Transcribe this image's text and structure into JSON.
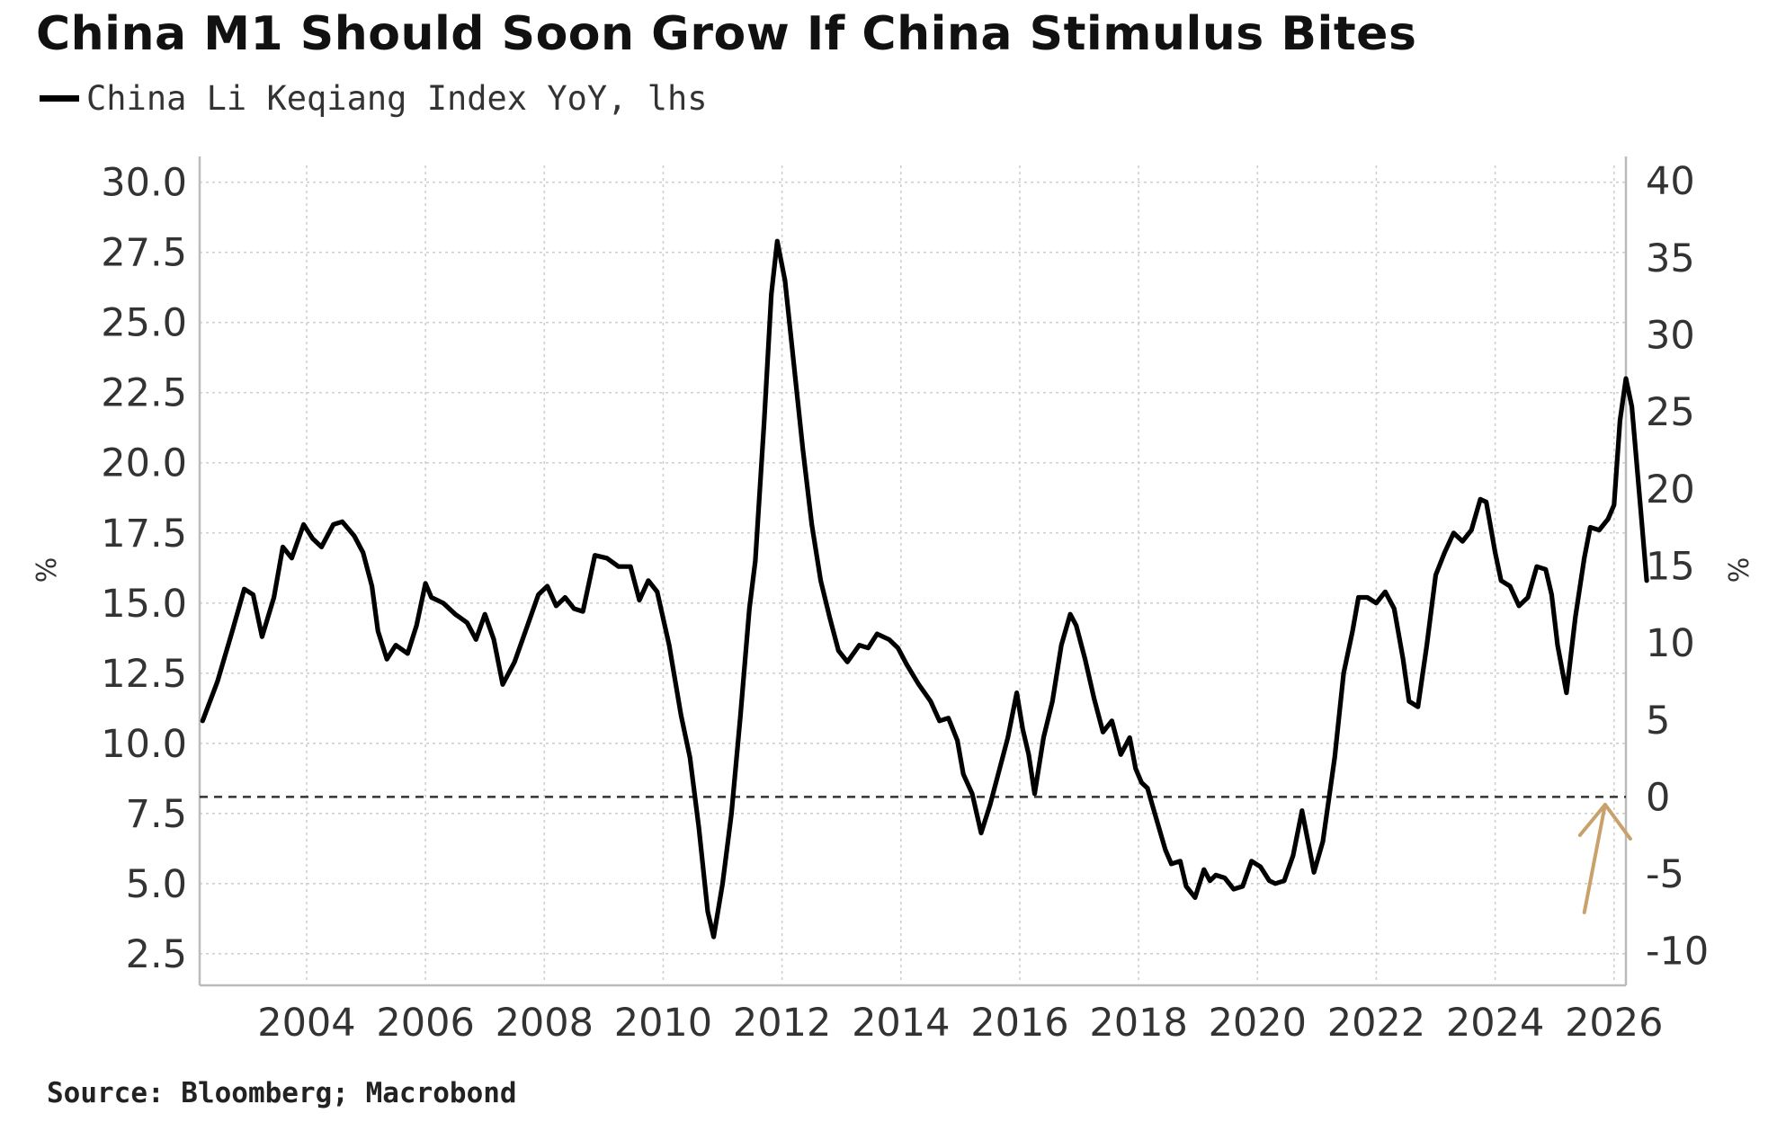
{
  "chart_data": {
    "type": "line",
    "title": "China M1 Should Soon Grow If China Stimulus Bites",
    "source": "Source: Bloomberg; Macrobond",
    "left_unit": "%",
    "right_unit": "%",
    "x_ticks": [
      "2004",
      "2006",
      "2008",
      "2010",
      "2012",
      "2014",
      "2016",
      "2018",
      "2020",
      "2022",
      "2024",
      "2026"
    ],
    "xlim": [
      2002.2,
      2026.2
    ],
    "left_ylim": [
      1.5,
      30.6
    ],
    "left_ticks": [
      "30.0",
      "27.5",
      "25.0",
      "22.5",
      "20.0",
      "17.5",
      "15.0",
      "12.5",
      "10.0",
      "7.5",
      "5.0",
      "2.5"
    ],
    "right_ylim": [
      -12,
      41
    ],
    "right_ticks": [
      "40",
      "35",
      "30",
      "25",
      "20",
      "15",
      "10",
      "5",
      "0",
      "-5",
      "-10"
    ],
    "reference_line": {
      "axis": "right",
      "value": 0,
      "style": "dashed"
    },
    "colors": {
      "li_keqiang": "#000000",
      "real_m1": "#b48c58",
      "arrow": "#c9a26b"
    },
    "series": [
      {
        "name": "China Li Keqiang Index YoY, lhs",
        "axis": "left",
        "points": [
          [
            2002.25,
            10.8
          ],
          [
            2002.5,
            12.2
          ],
          [
            2002.75,
            14.0
          ],
          [
            2002.95,
            15.5
          ],
          [
            2003.1,
            15.3
          ],
          [
            2003.25,
            13.8
          ],
          [
            2003.45,
            15.2
          ],
          [
            2003.6,
            17.0
          ],
          [
            2003.75,
            16.6
          ],
          [
            2003.95,
            17.8
          ],
          [
            2004.1,
            17.3
          ],
          [
            2004.25,
            17.0
          ],
          [
            2004.45,
            17.8
          ],
          [
            2004.6,
            17.9
          ],
          [
            2004.8,
            17.4
          ],
          [
            2004.95,
            16.8
          ],
          [
            2005.1,
            15.6
          ],
          [
            2005.2,
            14.0
          ],
          [
            2005.35,
            13.0
          ],
          [
            2005.5,
            13.5
          ],
          [
            2005.7,
            13.2
          ],
          [
            2005.85,
            14.2
          ],
          [
            2006.0,
            15.7
          ],
          [
            2006.1,
            15.2
          ],
          [
            2006.3,
            15.0
          ],
          [
            2006.5,
            14.6
          ],
          [
            2006.7,
            14.3
          ],
          [
            2006.85,
            13.7
          ],
          [
            2007.0,
            14.6
          ],
          [
            2007.15,
            13.7
          ],
          [
            2007.3,
            12.1
          ],
          [
            2007.5,
            12.9
          ],
          [
            2007.7,
            14.1
          ],
          [
            2007.9,
            15.3
          ],
          [
            2008.05,
            15.6
          ],
          [
            2008.2,
            14.9
          ],
          [
            2008.35,
            15.2
          ],
          [
            2008.5,
            14.8
          ],
          [
            2008.65,
            14.7
          ],
          [
            2008.85,
            16.7
          ],
          [
            2009.05,
            16.6
          ],
          [
            2009.25,
            16.3
          ],
          [
            2009.45,
            16.3
          ],
          [
            2009.6,
            15.1
          ],
          [
            2009.75,
            15.8
          ],
          [
            2009.9,
            15.4
          ],
          [
            2010.1,
            13.5
          ],
          [
            2010.3,
            11.0
          ],
          [
            2010.45,
            9.5
          ],
          [
            2010.6,
            7.0
          ],
          [
            2010.75,
            4.0
          ],
          [
            2010.85,
            3.1
          ],
          [
            2011.0,
            5.0
          ],
          [
            2011.15,
            7.5
          ],
          [
            2011.3,
            11.0
          ],
          [
            2011.45,
            14.8
          ],
          [
            2011.55,
            16.5
          ],
          [
            2011.7,
            21.5
          ],
          [
            2011.82,
            26.0
          ],
          [
            2011.92,
            27.9
          ],
          [
            2012.05,
            26.5
          ],
          [
            2012.2,
            23.5
          ],
          [
            2012.35,
            20.5
          ],
          [
            2012.5,
            17.8
          ],
          [
            2012.65,
            15.8
          ],
          [
            2012.8,
            14.5
          ],
          [
            2012.95,
            13.3
          ],
          [
            2013.1,
            12.9
          ],
          [
            2013.3,
            13.5
          ],
          [
            2013.45,
            13.4
          ],
          [
            2013.6,
            13.9
          ],
          [
            2013.8,
            13.7
          ],
          [
            2013.95,
            13.4
          ],
          [
            2014.1,
            12.8
          ],
          [
            2014.3,
            12.1
          ],
          [
            2014.5,
            11.5
          ],
          [
            2014.65,
            10.8
          ],
          [
            2014.8,
            10.9
          ],
          [
            2014.95,
            10.1
          ],
          [
            2015.05,
            8.9
          ],
          [
            2015.2,
            8.2
          ],
          [
            2015.35,
            6.8
          ],
          [
            2015.5,
            7.8
          ],
          [
            2015.65,
            9.0
          ],
          [
            2015.8,
            10.2
          ],
          [
            2015.95,
            11.8
          ],
          [
            2016.05,
            10.5
          ],
          [
            2016.15,
            9.6
          ],
          [
            2016.25,
            8.2
          ],
          [
            2016.4,
            10.2
          ],
          [
            2016.55,
            11.5
          ],
          [
            2016.7,
            13.5
          ],
          [
            2016.85,
            14.6
          ],
          [
            2016.95,
            14.2
          ],
          [
            2017.1,
            13.0
          ],
          [
            2017.25,
            11.6
          ],
          [
            2017.4,
            10.4
          ],
          [
            2017.55,
            10.8
          ],
          [
            2017.7,
            9.6
          ],
          [
            2017.85,
            10.2
          ],
          [
            2017.95,
            9.1
          ],
          [
            2018.05,
            8.6
          ],
          [
            2018.15,
            8.4
          ],
          [
            2018.3,
            7.3
          ],
          [
            2018.45,
            6.2
          ],
          [
            2018.55,
            5.7
          ],
          [
            2018.7,
            5.8
          ],
          [
            2018.8,
            4.9
          ],
          [
            2018.95,
            4.5
          ],
          [
            2019.1,
            5.5
          ],
          [
            2019.2,
            5.1
          ],
          [
            2019.3,
            5.3
          ],
          [
            2019.45,
            5.2
          ],
          [
            2019.6,
            4.8
          ],
          [
            2019.75,
            4.9
          ],
          [
            2019.9,
            5.8
          ],
          [
            2020.05,
            5.6
          ],
          [
            2020.2,
            5.1
          ],
          [
            2020.3,
            5.0
          ],
          [
            2020.45,
            5.1
          ],
          [
            2020.6,
            6.0
          ],
          [
            2020.75,
            7.6
          ],
          [
            2020.85,
            6.5
          ],
          [
            2020.95,
            5.4
          ],
          [
            2021.1,
            6.5
          ],
          [
            2021.3,
            9.5
          ],
          [
            2021.45,
            12.5
          ],
          [
            2021.6,
            14.0
          ],
          [
            2021.7,
            15.2
          ],
          [
            2021.85,
            15.2
          ],
          [
            2022.0,
            15.0
          ],
          [
            2022.15,
            15.4
          ],
          [
            2022.3,
            14.8
          ],
          [
            2022.45,
            13.0
          ],
          [
            2022.55,
            11.5
          ],
          [
            2022.7,
            11.3
          ],
          [
            2022.85,
            13.5
          ],
          [
            2023.0,
            16.0
          ],
          [
            2023.15,
            16.8
          ],
          [
            2023.3,
            17.5
          ],
          [
            2023.45,
            17.2
          ],
          [
            2023.6,
            17.6
          ],
          [
            2023.75,
            18.7
          ],
          [
            2023.85,
            18.6
          ],
          [
            2024.0,
            16.8
          ],
          [
            2024.1,
            15.8
          ],
          [
            2024.25,
            15.6
          ],
          [
            2024.4,
            14.9
          ],
          [
            2024.55,
            15.2
          ],
          [
            2024.7,
            16.3
          ],
          [
            2024.85,
            16.2
          ],
          [
            2024.95,
            15.3
          ],
          [
            2025.05,
            13.5
          ],
          [
            2025.2,
            11.8
          ],
          [
            2025.35,
            14.5
          ],
          [
            2025.5,
            16.6
          ],
          [
            2025.6,
            17.7
          ],
          [
            2025.75,
            17.6
          ],
          [
            2025.9,
            18.0
          ],
          [
            2026.0,
            18.5
          ],
          [
            2026.1,
            21.5
          ],
          [
            2026.2,
            23.0
          ],
          [
            2026.3,
            22.0
          ],
          [
            2026.45,
            18.3
          ],
          [
            2026.55,
            15.8
          ]
        ]
      }
    ]
  }
}
